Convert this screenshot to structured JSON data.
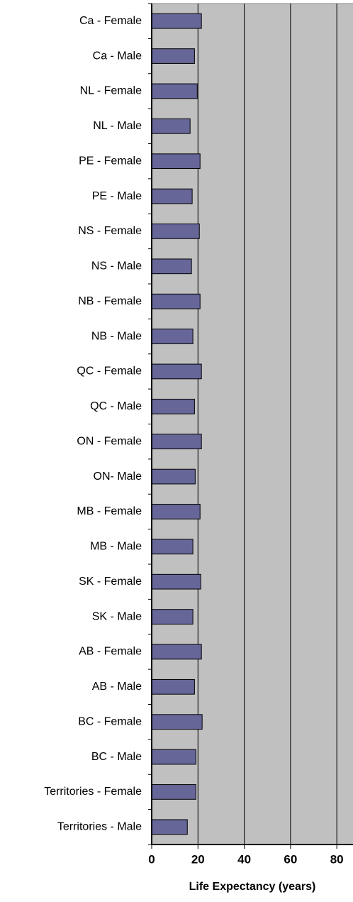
{
  "chart_data": {
    "type": "bar",
    "orientation": "horizontal",
    "x_label": "Life Expectancy (years)",
    "categories": [
      "Ca - Female",
      "Ca - Male",
      "NL - Female",
      "NL - Male",
      "PE - Female",
      "PE - Male",
      "NS - Female",
      "NS - Male",
      "NB - Female",
      "NB - Male",
      "QC - Female",
      "QC - Male",
      "ON - Female",
      "ON- Male",
      "MB - Female",
      "MB - Male",
      "SK - Female",
      "SK - Male",
      "AB - Female",
      "AB - Male",
      "BC - Female",
      "BC - Male",
      "Territories - Female",
      "Territories - Male"
    ],
    "values": [
      21.5,
      18.5,
      19.7,
      16.6,
      20.9,
      17.5,
      20.6,
      17.2,
      20.9,
      17.8,
      21.5,
      18.5,
      21.5,
      18.8,
      20.9,
      17.8,
      21.2,
      17.8,
      21.5,
      18.5,
      21.8,
      19.1,
      19.1,
      15.4
    ],
    "color": "#666699",
    "xlim": [
      0,
      87
    ],
    "xticks": [
      0,
      20,
      40,
      60,
      80
    ],
    "grid": true
  }
}
